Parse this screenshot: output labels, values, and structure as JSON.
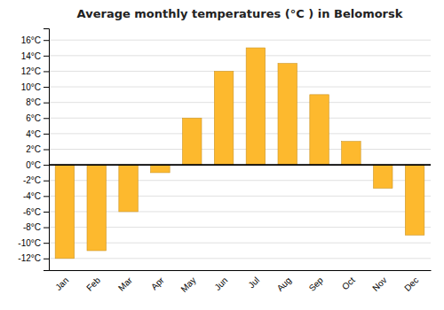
{
  "chart_data": {
    "type": "bar",
    "title": "Average monthly temperatures (°C ) in Belomorsk",
    "categories": [
      "Jan",
      "Feb",
      "Mar",
      "Apr",
      "May",
      "Jun",
      "Jul",
      "Aug",
      "Sep",
      "Oct",
      "Nov",
      "Dec"
    ],
    "values": [
      -12,
      -11,
      -6,
      -1,
      6,
      12,
      15,
      13,
      9,
      3,
      -3,
      -9
    ],
    "color": "#FDB92E",
    "ylim": [
      -13.5,
      17.5
    ],
    "yticks": [
      {
        "value": -12,
        "label": "-12°C"
      },
      {
        "value": -10,
        "label": "-10°C"
      },
      {
        "value": -8,
        "label": "-8°C"
      },
      {
        "value": -6,
        "label": "-6°C"
      },
      {
        "value": -4,
        "label": "-4°C"
      },
      {
        "value": -2,
        "label": "-2°C"
      },
      {
        "value": 0,
        "label": "0°C"
      },
      {
        "value": 2,
        "label": "2°C"
      },
      {
        "value": 4,
        "label": "4°C"
      },
      {
        "value": 6,
        "label": "6°C"
      },
      {
        "value": 8,
        "label": "8°C"
      },
      {
        "value": 10,
        "label": "10°C"
      },
      {
        "value": 12,
        "label": "12°C"
      },
      {
        "value": 14,
        "label": "14°C"
      },
      {
        "value": 16,
        "label": "16°C"
      }
    ],
    "grid": true
  }
}
